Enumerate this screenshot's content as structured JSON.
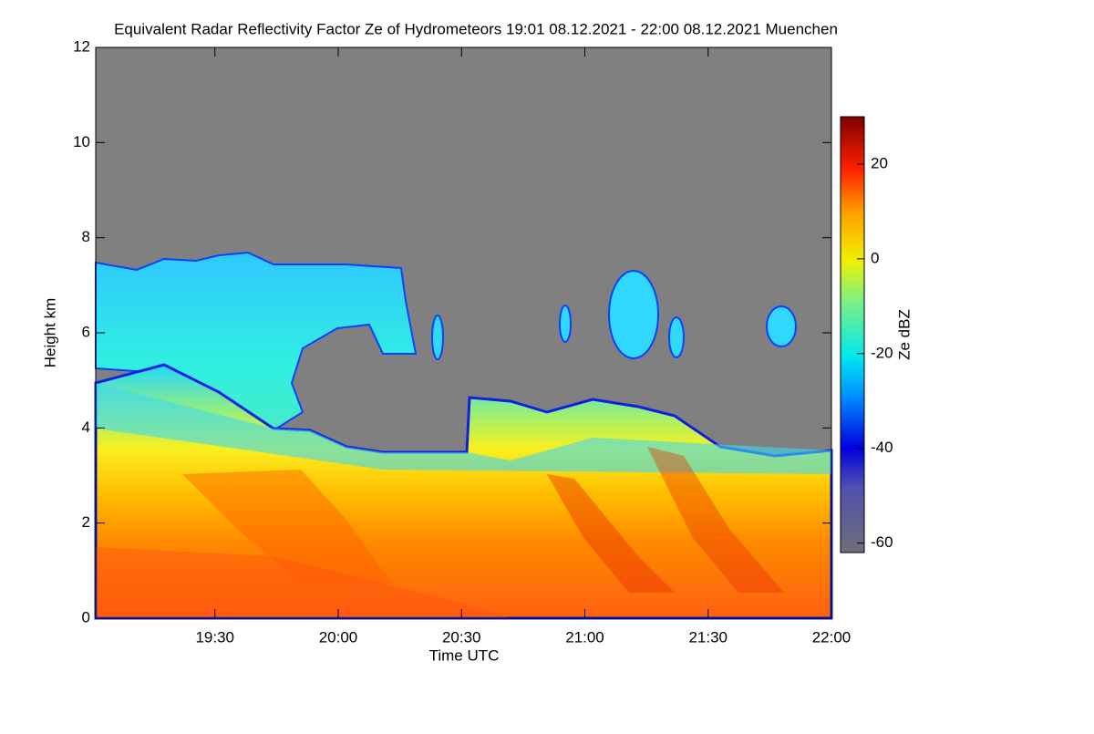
{
  "chart_data": {
    "type": "heatmap",
    "title": "Equivalent Radar Reflectivity Factor Ze of Hydrometeors   19:01 08.12.2021 - 22:00 08.12.2021 Muenchen",
    "xlabel": "Time UTC",
    "ylabel": "Height km",
    "xlim": [
      1141,
      1320
    ],
    "xticks": [
      {
        "value": 1170,
        "label": "19:30"
      },
      {
        "value": 1200,
        "label": "20:00"
      },
      {
        "value": 1230,
        "label": "20:30"
      },
      {
        "value": 1260,
        "label": "21:00"
      },
      {
        "value": 1290,
        "label": "21:30"
      },
      {
        "value": 1320,
        "label": "22:00"
      }
    ],
    "ylim": [
      0,
      12
    ],
    "yticks": [
      0,
      2,
      4,
      6,
      8,
      10,
      12
    ],
    "colorbar": {
      "label": "Ze dBZ",
      "lim": [
        -62,
        30
      ],
      "ticks": [
        -60,
        -40,
        -20,
        0,
        20
      ]
    }
  }
}
